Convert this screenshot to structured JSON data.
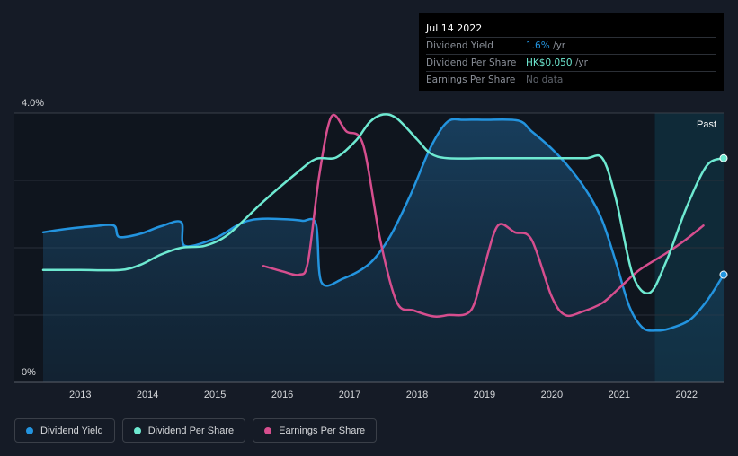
{
  "tooltip": {
    "date": "Jul 14 2022",
    "rows": [
      {
        "label": "Dividend Yield",
        "value": "1.6%",
        "unit": " /yr",
        "color": "#2394df"
      },
      {
        "label": "Dividend Per Share",
        "value": "HK$0.050",
        "unit": " /yr",
        "color": "#6ee9d1"
      },
      {
        "label": "Earnings Per Share",
        "value": "",
        "unit": "No data",
        "color": "#5f646c"
      }
    ]
  },
  "past_label": "Past",
  "legend": [
    {
      "label": "Dividend Yield",
      "color": "#2394df"
    },
    {
      "label": "Dividend Per Share",
      "color": "#6ee9d1"
    },
    {
      "label": "Earnings Per Share",
      "color": "#d64e8e"
    }
  ],
  "chart_data": {
    "type": "line",
    "title": "",
    "xlabel": "",
    "ylabel": "",
    "ylim": [
      0,
      4.0
    ],
    "xlim": [
      2012.45,
      2022.55
    ],
    "y_tick_labels": [
      "4.0%",
      "0%"
    ],
    "x_tick_labels": [
      "2013",
      "2014",
      "2015",
      "2016",
      "2017",
      "2018",
      "2019",
      "2020",
      "2021",
      "2022"
    ],
    "x_ticks": [
      2013,
      2014,
      2015,
      2016,
      2017,
      2018,
      2019,
      2020,
      2021,
      2022
    ],
    "past_region_start": 2021.53,
    "series": [
      {
        "name": "Dividend Yield",
        "color": "#2394df",
        "filled": true,
        "points": [
          [
            2012.45,
            2.23
          ],
          [
            2012.8,
            2.28
          ],
          [
            2013.2,
            2.32
          ],
          [
            2013.5,
            2.33
          ],
          [
            2013.58,
            2.16
          ],
          [
            2013.9,
            2.21
          ],
          [
            2014.2,
            2.32
          ],
          [
            2014.5,
            2.38
          ],
          [
            2014.55,
            2.03
          ],
          [
            2015.0,
            2.14
          ],
          [
            2015.4,
            2.37
          ],
          [
            2015.7,
            2.43
          ],
          [
            2016.1,
            2.42
          ],
          [
            2016.3,
            2.4
          ],
          [
            2016.5,
            2.35
          ],
          [
            2016.58,
            1.49
          ],
          [
            2016.9,
            1.54
          ],
          [
            2017.3,
            1.77
          ],
          [
            2017.6,
            2.17
          ],
          [
            2017.9,
            2.78
          ],
          [
            2018.2,
            3.49
          ],
          [
            2018.45,
            3.87
          ],
          [
            2018.7,
            3.9
          ],
          [
            2019.0,
            3.9
          ],
          [
            2019.5,
            3.89
          ],
          [
            2019.7,
            3.73
          ],
          [
            2020.0,
            3.47
          ],
          [
            2020.3,
            3.14
          ],
          [
            2020.55,
            2.79
          ],
          [
            2020.75,
            2.4
          ],
          [
            2020.95,
            1.79
          ],
          [
            2021.15,
            1.13
          ],
          [
            2021.35,
            0.81
          ],
          [
            2021.55,
            0.77
          ],
          [
            2021.75,
            0.8
          ],
          [
            2022.05,
            0.93
          ],
          [
            2022.3,
            1.21
          ],
          [
            2022.55,
            1.6
          ]
        ]
      },
      {
        "name": "Dividend Per Share",
        "color": "#6ee9d1",
        "filled": false,
        "points": [
          [
            2012.45,
            1.67
          ],
          [
            2013.0,
            1.67
          ],
          [
            2013.6,
            1.67
          ],
          [
            2013.9,
            1.75
          ],
          [
            2014.2,
            1.9
          ],
          [
            2014.5,
            2.0
          ],
          [
            2014.85,
            2.03
          ],
          [
            2015.2,
            2.2
          ],
          [
            2015.7,
            2.67
          ],
          [
            2016.2,
            3.1
          ],
          [
            2016.5,
            3.32
          ],
          [
            2016.8,
            3.34
          ],
          [
            2017.1,
            3.6
          ],
          [
            2017.3,
            3.87
          ],
          [
            2017.5,
            3.98
          ],
          [
            2017.7,
            3.92
          ],
          [
            2018.0,
            3.61
          ],
          [
            2018.2,
            3.4
          ],
          [
            2018.45,
            3.33
          ],
          [
            2019.0,
            3.33
          ],
          [
            2019.5,
            3.33
          ],
          [
            2020.0,
            3.33
          ],
          [
            2020.5,
            3.33
          ],
          [
            2020.75,
            3.33
          ],
          [
            2020.95,
            2.73
          ],
          [
            2021.2,
            1.6
          ],
          [
            2021.45,
            1.33
          ],
          [
            2021.7,
            1.8
          ],
          [
            2022.0,
            2.6
          ],
          [
            2022.3,
            3.22
          ],
          [
            2022.55,
            3.33
          ]
        ]
      },
      {
        "name": "Earnings Per Share",
        "color": "#d64e8e",
        "filled": false,
        "points": [
          [
            2015.72,
            1.73
          ],
          [
            2016.0,
            1.65
          ],
          [
            2016.25,
            1.6
          ],
          [
            2016.38,
            1.79
          ],
          [
            2016.55,
            3.09
          ],
          [
            2016.73,
            3.95
          ],
          [
            2016.95,
            3.73
          ],
          [
            2017.2,
            3.53
          ],
          [
            2017.45,
            2.13
          ],
          [
            2017.7,
            1.19
          ],
          [
            2017.95,
            1.07
          ],
          [
            2018.25,
            0.98
          ],
          [
            2018.45,
            1.0
          ],
          [
            2018.8,
            1.07
          ],
          [
            2019.0,
            1.73
          ],
          [
            2019.2,
            2.33
          ],
          [
            2019.45,
            2.23
          ],
          [
            2019.7,
            2.12
          ],
          [
            2020.0,
            1.27
          ],
          [
            2020.2,
            1.0
          ],
          [
            2020.45,
            1.05
          ],
          [
            2020.75,
            1.18
          ],
          [
            2021.0,
            1.4
          ],
          [
            2021.3,
            1.67
          ],
          [
            2021.7,
            1.92
          ],
          [
            2022.0,
            2.13
          ],
          [
            2022.25,
            2.33
          ]
        ]
      }
    ]
  }
}
